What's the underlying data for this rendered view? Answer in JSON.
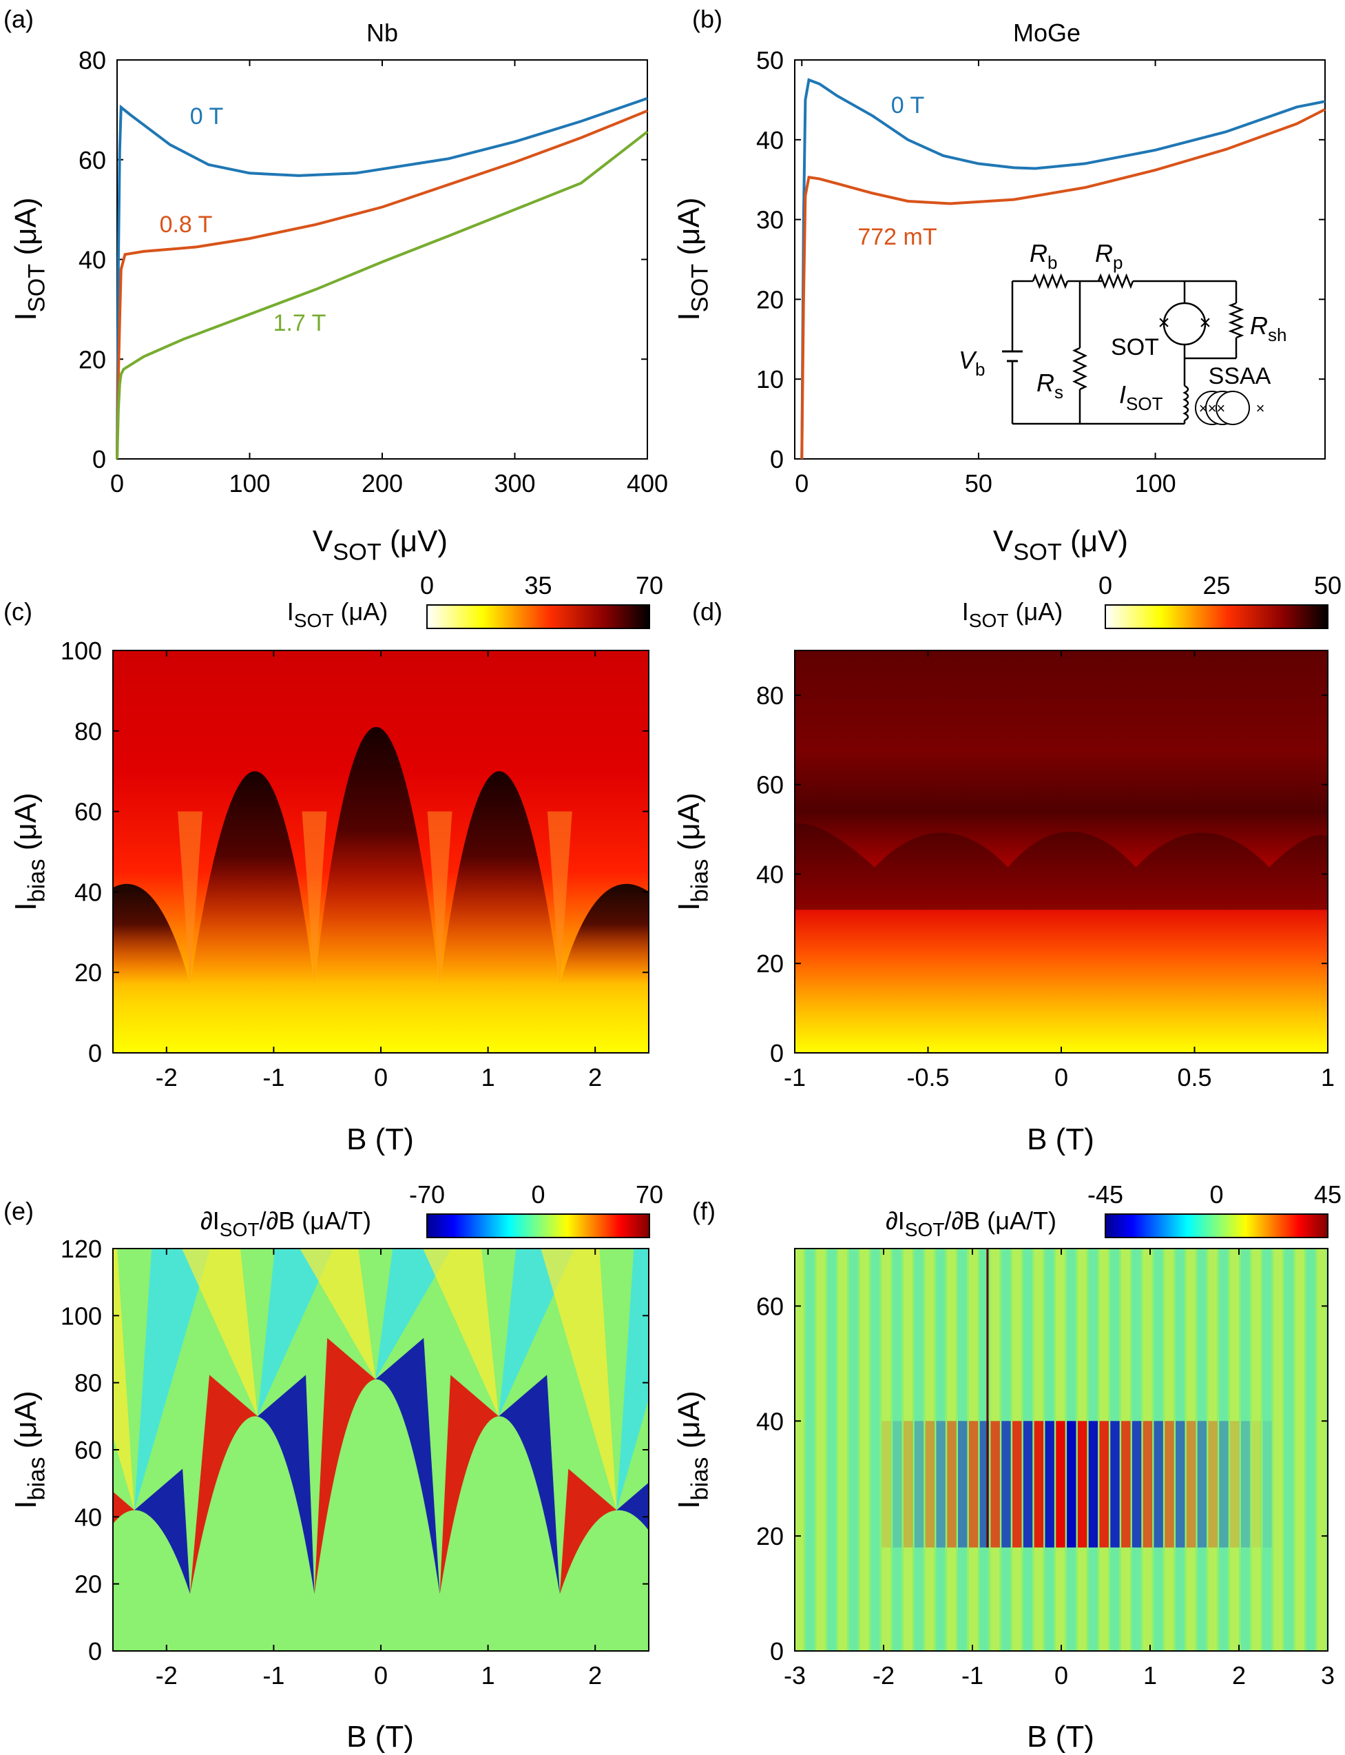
{
  "chart_data": [
    {
      "panel": "(a)",
      "type": "line",
      "title": "Nb",
      "xlabel": {
        "main": "V",
        "sub": "SOT",
        "unit": " (μV)"
      },
      "ylabel": {
        "main": "I",
        "sub": "SOT",
        "unit": " (μA)"
      },
      "xlim": [
        0,
        400
      ],
      "ylim": [
        0,
        80
      ],
      "xticks": [
        0,
        100,
        200,
        300,
        400
      ],
      "yticks": [
        0,
        20,
        40,
        60,
        80
      ],
      "series": [
        {
          "name": "0 T",
          "color": "#1f77b4",
          "x": [
            0,
            1,
            2,
            3,
            10,
            20,
            40,
            69,
            100,
            137,
            180,
            250,
            300,
            350,
            400
          ],
          "y": [
            0,
            40,
            62,
            70.5,
            69,
            67,
            63,
            59,
            57.3,
            56.8,
            57.3,
            60.2,
            63.6,
            67.7,
            72.3
          ]
        },
        {
          "name": "0.8 T",
          "color": "#d95319",
          "x": [
            0,
            1,
            2,
            3,
            6,
            20,
            60,
            100,
            150,
            200,
            250,
            300,
            350,
            400
          ],
          "y": [
            0,
            17,
            28,
            38,
            41,
            41.6,
            42.5,
            44.2,
            47,
            50.5,
            55,
            59.5,
            64.4,
            69.8
          ]
        },
        {
          "name": "1.7 T",
          "color": "#77ac30",
          "x": [
            0,
            1,
            2,
            3,
            5,
            20,
            50,
            100,
            150,
            200,
            250,
            300,
            350,
            400
          ],
          "y": [
            0,
            10,
            15,
            17,
            18,
            20.5,
            24,
            29,
            34,
            39.5,
            44.7,
            50,
            55.3,
            65.6
          ]
        }
      ]
    },
    {
      "panel": "(b)",
      "type": "line",
      "title": "MoGe",
      "xlabel": {
        "main": "V",
        "sub": "SOT",
        "unit": " (μV)"
      },
      "ylabel": {
        "main": "I",
        "sub": "SOT",
        "unit": " (μA)"
      },
      "xlim": [
        -2,
        148
      ],
      "ylim": [
        0,
        50
      ],
      "xticks": [
        0,
        50,
        100
      ],
      "yticks": [
        0,
        10,
        20,
        30,
        40,
        50
      ],
      "series": [
        {
          "name": "0 T",
          "color": "#1f77b4",
          "x": [
            0,
            0.5,
            1,
            2,
            5,
            10,
            20,
            30,
            40,
            50,
            60,
            66,
            80,
            100,
            120,
            140,
            148
          ],
          "y": [
            0,
            30,
            45,
            47.5,
            47,
            45.5,
            43,
            40,
            38,
            37,
            36.5,
            36.4,
            37,
            38.7,
            41,
            44.1,
            44.8
          ]
        },
        {
          "name": "772 mT",
          "color": "#d95319",
          "x": [
            0,
            0.5,
            1,
            2,
            5,
            10,
            20,
            30,
            42,
            60,
            80,
            100,
            120,
            140,
            148
          ],
          "y": [
            0,
            20,
            33,
            35.3,
            35.1,
            34.5,
            33.3,
            32.3,
            32,
            32.5,
            34,
            36.2,
            38.8,
            42,
            43.8
          ]
        }
      ],
      "inset": {
        "labels": {
          "rb": "R",
          "rb_sub": "b",
          "rp": "R",
          "rp_sub": "p",
          "rsh": "R",
          "rsh_sub": "sh",
          "sot": "SOT",
          "vb": "V",
          "vb_sub": "b",
          "rs": "R",
          "rs_sub": "s",
          "isot": "I",
          "isot_sub": "SOT",
          "ssaa": "SSAA"
        }
      }
    },
    {
      "panel": "(c)",
      "type": "heatmap",
      "xlabel": {
        "main": "B (T)"
      },
      "ylabel": {
        "main": "I",
        "sub": "bias",
        "unit": " (μA)"
      },
      "xlim": [
        -2.5,
        2.5
      ],
      "ylim": [
        0,
        100
      ],
      "xticks": [
        -2,
        -1,
        0,
        1,
        2
      ],
      "yticks": [
        0,
        20,
        40,
        60,
        80,
        100
      ],
      "colorbar": {
        "label": {
          "main": "I",
          "sub": "SOT",
          "unit": " (μA)"
        },
        "ticks": [
          0,
          35,
          70
        ],
        "range": [
          0,
          70
        ],
        "colormap": "hot_reversed"
      },
      "lobe_peaks_T": [
        -2.3,
        -1.15,
        -0.05,
        1.1,
        2.2
      ],
      "lobe_heights_uA": [
        42,
        70,
        81,
        70,
        42
      ],
      "lobe_minima_T": [
        -1.78,
        -0.62,
        0.55,
        1.67
      ]
    },
    {
      "panel": "(d)",
      "type": "heatmap",
      "xlabel": {
        "main": "B (T)"
      },
      "ylabel": {
        "main": "I",
        "sub": "bias",
        "unit": " (μA)"
      },
      "xlim": [
        -1,
        1
      ],
      "ylim": [
        0,
        90
      ],
      "xticks": [
        -1,
        -0.5,
        0,
        0.5,
        1
      ],
      "yticks": [
        0,
        20,
        40,
        60,
        80
      ],
      "colorbar": {
        "label": {
          "main": "I",
          "sub": "SOT",
          "unit": " (μA)"
        },
        "ticks": [
          0,
          25,
          50
        ],
        "range": [
          0,
          50
        ],
        "colormap": "hot_reversed"
      },
      "lobe_peaks_T": [
        -0.95,
        -0.45,
        0.03,
        0.53
      ],
      "lobe_heights_uA": [
        51,
        53,
        53.5,
        53
      ],
      "lobe_minima_T": [
        -0.7,
        -0.2,
        0.28,
        0.78
      ]
    },
    {
      "panel": "(e)",
      "type": "heatmap",
      "xlabel": {
        "main": "B (T)"
      },
      "ylabel": {
        "main": "I",
        "sub": "bias",
        "unit": " (μA)"
      },
      "xlim": [
        -2.5,
        2.5
      ],
      "ylim": [
        0,
        120
      ],
      "xticks": [
        -2,
        -1,
        0,
        1,
        2
      ],
      "yticks": [
        0,
        20,
        40,
        60,
        80,
        100,
        120
      ],
      "colorbar": {
        "label": {
          "main": "∂I",
          "sub": "SOT",
          "unit": "/∂B (μA/T)"
        },
        "ticks": [
          -70,
          0,
          70
        ],
        "range": [
          -70,
          70
        ],
        "colormap": "jet"
      }
    },
    {
      "panel": "(f)",
      "type": "heatmap",
      "xlabel": {
        "main": "B (T)"
      },
      "ylabel": {
        "main": "I",
        "sub": "bias",
        "unit": " (μA)"
      },
      "xlim": [
        -3,
        3
      ],
      "ylim": [
        0,
        70
      ],
      "xticks": [
        -3,
        -2,
        -1,
        0,
        1,
        2,
        3
      ],
      "yticks": [
        0,
        20,
        40,
        60
      ],
      "colorbar": {
        "label": {
          "main": "∂I",
          "sub": "SOT",
          "unit": "/∂B (μA/T)"
        },
        "ticks": [
          -45,
          0,
          45
        ],
        "range": [
          -45,
          45
        ],
        "colormap": "jet"
      }
    }
  ]
}
